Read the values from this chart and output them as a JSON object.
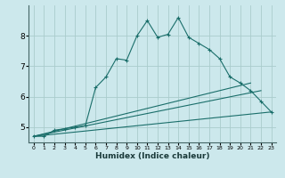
{
  "xlabel": "Humidex (Indice chaleur)",
  "ylabel": "",
  "background_color": "#cce8ec",
  "grid_color": "#aacccc",
  "line_color": "#1a6e6a",
  "xlim": [
    -0.5,
    23.5
  ],
  "ylim": [
    4.5,
    9.0
  ],
  "yticks": [
    5,
    6,
    7,
    8
  ],
  "xticks": [
    0,
    1,
    2,
    3,
    4,
    5,
    6,
    7,
    8,
    9,
    10,
    11,
    12,
    13,
    14,
    15,
    16,
    17,
    18,
    19,
    20,
    21,
    22,
    23
  ],
  "series_main": {
    "x": [
      0,
      1,
      2,
      3,
      4,
      5,
      6,
      7,
      8,
      9,
      10,
      11,
      12,
      13,
      14,
      15,
      16,
      17,
      18,
      19,
      20,
      21,
      22,
      23
    ],
    "y": [
      4.7,
      4.7,
      4.9,
      4.95,
      5.0,
      5.05,
      6.3,
      6.65,
      7.25,
      7.2,
      8.0,
      8.5,
      7.95,
      8.05,
      8.6,
      7.95,
      7.75,
      7.55,
      7.25,
      6.65,
      6.45,
      6.2,
      5.85,
      5.5
    ]
  },
  "series_lines": [
    {
      "x": [
        0,
        23
      ],
      "y": [
        4.7,
        5.5
      ]
    },
    {
      "x": [
        0,
        22
      ],
      "y": [
        4.7,
        6.2
      ]
    },
    {
      "x": [
        0,
        21
      ],
      "y": [
        4.7,
        6.45
      ]
    }
  ]
}
